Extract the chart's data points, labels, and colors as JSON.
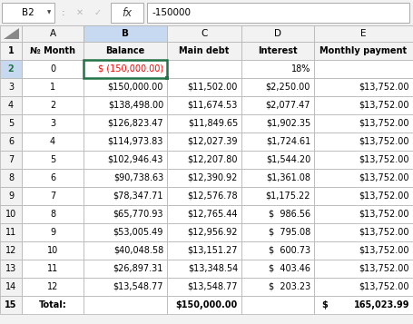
{
  "formula_bar_cell": "B2",
  "formula_bar_value": "-150000",
  "col_headers": [
    "A",
    "B",
    "C",
    "D",
    "E"
  ],
  "row_headers": [
    "1",
    "2",
    "3",
    "4",
    "5",
    "6",
    "7",
    "8",
    "9",
    "10",
    "11",
    "12",
    "13",
    "14",
    "15"
  ],
  "headers": [
    "№ Month",
    "Balance",
    "Main debt",
    "Interest",
    "Monthly payment"
  ],
  "rows": [
    [
      "0",
      "$ (150,000.00)",
      "",
      "18%",
      ""
    ],
    [
      "1",
      "$150,000.00",
      "$11,502.00",
      "$2,250.00",
      "$13,752.00"
    ],
    [
      "2",
      "$138,498.00",
      "$11,674.53",
      "$2,077.47",
      "$13,752.00"
    ],
    [
      "3",
      "$126,823.47",
      "$11,849.65",
      "$1,902.35",
      "$13,752.00"
    ],
    [
      "4",
      "$114,973.83",
      "$12,027.39",
      "$1,724.61",
      "$13,752.00"
    ],
    [
      "5",
      "$102,946.43",
      "$12,207.80",
      "$1,544.20",
      "$13,752.00"
    ],
    [
      "6",
      "$90,738.63",
      "$12,390.92",
      "$1,361.08",
      "$13,752.00"
    ],
    [
      "7",
      "$78,347.71",
      "$12,576.78",
      "$1,175.22",
      "$13,752.00"
    ],
    [
      "8",
      "$65,770.93",
      "$12,765.44",
      "$  986.56",
      "$13,752.00"
    ],
    [
      "9",
      "$53,005.49",
      "$12,956.92",
      "$  795.08",
      "$13,752.00"
    ],
    [
      "10",
      "$40,048.58",
      "$13,151.27",
      "$  600.73",
      "$13,752.00"
    ],
    [
      "11",
      "$26,897.31",
      "$13,348.54",
      "$  403.46",
      "$13,752.00"
    ],
    [
      "12",
      "$13,548.77",
      "$13,548.77",
      "$  203.23",
      "$13,752.00"
    ],
    [
      "Total:",
      "",
      "$150,000.00",
      "",
      "$    165,023.99"
    ]
  ],
  "total_e_dollar": "$",
  "total_e_number": "165,023.99",
  "selected_col_bg": "#c6d9f1",
  "selected_cell_border": "#217346",
  "grid_color": "#b0b0b0",
  "negative_color": "#ff0000",
  "interest_bold_color": "#000000",
  "fb_bg": "#f2f2f2",
  "white": "#ffffff",
  "header_row_bg": "#f2f2f2"
}
